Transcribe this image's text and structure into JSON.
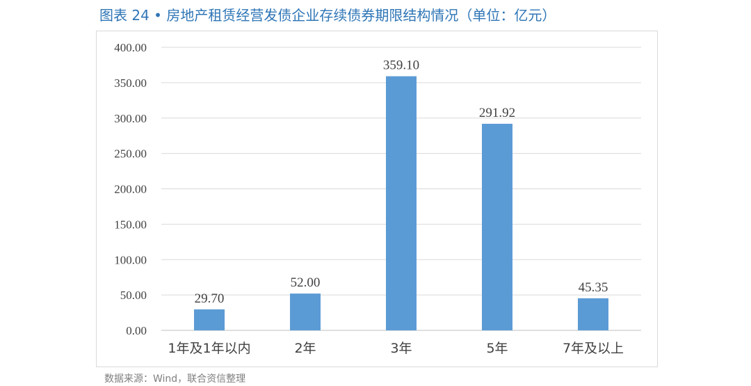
{
  "figure": {
    "title": "图表 24 • 房地产租赁经营发债企业存续债券期限结构情况（单位：亿元）",
    "source": "数据来源：Wind，联合资信整理"
  },
  "chart_data": {
    "type": "bar",
    "categories": [
      "1年及1年以内",
      "2年",
      "3年",
      "5年",
      "7年及以上"
    ],
    "values": [
      29.7,
      52.0,
      359.1,
      291.92,
      45.35
    ],
    "data_labels": [
      "29.70",
      "52.00",
      "359.10",
      "291.92",
      "45.35"
    ],
    "y_ticks": [
      "0.00",
      "50.00",
      "100.00",
      "150.00",
      "200.00",
      "250.00",
      "300.00",
      "350.00",
      "400.00"
    ],
    "ylim": [
      0,
      400
    ],
    "ytick_step": 50,
    "grid": true,
    "legend": "none",
    "bar_color": "#5B9BD5",
    "grid_color": "#D9D9D9",
    "axis_color": "#BFBFBF"
  }
}
